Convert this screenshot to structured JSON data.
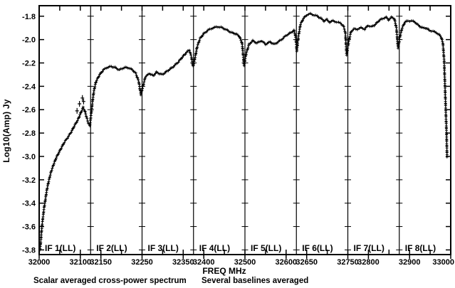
{
  "page": {
    "background": "#ffffff",
    "foreground": "#000000",
    "caption_left": "Scalar averaged cross-power spectrum",
    "caption_right": "Several baselines averaged"
  },
  "chart_data": {
    "type": "scatter",
    "marker": "plus",
    "title": "Scalar averaged cross-power spectrum, several baselines averaged",
    "xlabel": "FREQ MHz",
    "ylabel": "Log10(Amp) Jy",
    "xlim": [
      32000,
      33000
    ],
    "ylim": [
      -3.84,
      -1.71
    ],
    "grid": false,
    "x_minor_tick_step_mhz": 50,
    "x_ticks": [
      {
        "f": 32000,
        "label": "32000"
      },
      {
        "f": 32100,
        "label": "32100"
      },
      {
        "f": 32150,
        "label": "32150"
      },
      {
        "f": 32250,
        "label": "32250"
      },
      {
        "f": 32350,
        "label": "32350"
      },
      {
        "f": 32400,
        "label": "32400"
      },
      {
        "f": 32500,
        "label": "32500"
      },
      {
        "f": 32600,
        "label": "32600"
      },
      {
        "f": 32650,
        "label": "32650"
      },
      {
        "f": 32750,
        "label": "32750"
      },
      {
        "f": 32800,
        "label": "32800"
      },
      {
        "f": 32900,
        "label": "32900"
      },
      {
        "f": 33000,
        "label": "33000"
      }
    ],
    "y_ticks": [
      {
        "v": -1.8,
        "label": "-1.8"
      },
      {
        "v": -2.0,
        "label": "-2.0"
      },
      {
        "v": -2.2,
        "label": "-2.2"
      },
      {
        "v": -2.4,
        "label": "-2.4"
      },
      {
        "v": -2.6,
        "label": "-2.6"
      },
      {
        "v": -2.8,
        "label": "-2.8"
      },
      {
        "v": -3.0,
        "label": "-3.0"
      },
      {
        "v": -3.2,
        "label": "-3.2"
      },
      {
        "v": -3.4,
        "label": "-3.4"
      },
      {
        "v": -3.6,
        "label": "-3.6"
      },
      {
        "v": -3.8,
        "label": "-3.8"
      }
    ],
    "panel_boundaries_mhz": [
      32125,
      32250,
      32375,
      32500,
      32625,
      32750,
      32875
    ],
    "panels": [
      {
        "label": "IF 1(LL)",
        "f_start": 32000,
        "f_end": 32125
      },
      {
        "label": "IF 2(LL)",
        "f_start": 32125,
        "f_end": 32250
      },
      {
        "label": "IF 3(LL)",
        "f_start": 32250,
        "f_end": 32375
      },
      {
        "label": "IF 4(LL)",
        "f_start": 32375,
        "f_end": 32500
      },
      {
        "label": "IF 5(LL)",
        "f_start": 32500,
        "f_end": 32625
      },
      {
        "label": "IF 6(LL)",
        "f_start": 32625,
        "f_end": 32750
      },
      {
        "label": "IF 7(LL)",
        "f_start": 32750,
        "f_end": 32875
      },
      {
        "label": "IF 8(LL)",
        "f_start": 32875,
        "f_end": 33000
      }
    ],
    "series": [
      {
        "name": "cross-power spectrum (LL)",
        "points": [
          [
            32002,
            -3.8
          ],
          [
            32004,
            -3.73
          ],
          [
            32005,
            -3.67
          ],
          [
            32007,
            -3.59
          ],
          [
            32009,
            -3.53
          ],
          [
            32012,
            -3.44
          ],
          [
            32016,
            -3.35
          ],
          [
            32019,
            -3.28
          ],
          [
            32024,
            -3.2
          ],
          [
            32029,
            -3.13
          ],
          [
            32036,
            -3.06
          ],
          [
            32043,
            -3.0
          ],
          [
            32052,
            -2.94
          ],
          [
            32061,
            -2.88
          ],
          [
            32069,
            -2.84
          ],
          [
            32078,
            -2.79
          ],
          [
            32087,
            -2.73
          ],
          [
            32095,
            -2.68
          ],
          [
            32102,
            -2.62
          ],
          [
            32107,
            -2.58
          ],
          [
            32111,
            -2.61
          ],
          [
            32114,
            -2.65
          ],
          [
            32119,
            -2.71
          ],
          [
            32123,
            -2.74
          ],
          [
            32126,
            -2.65
          ],
          [
            32130,
            -2.52
          ],
          [
            32133,
            -2.44
          ],
          [
            32138,
            -2.36
          ],
          [
            32147,
            -2.3
          ],
          [
            32156,
            -2.26
          ],
          [
            32164,
            -2.24
          ],
          [
            32175,
            -2.23
          ],
          [
            32185,
            -2.24
          ],
          [
            32195,
            -2.26
          ],
          [
            32206,
            -2.24
          ],
          [
            32216,
            -2.24
          ],
          [
            32227,
            -2.26
          ],
          [
            32235,
            -2.29
          ],
          [
            32242,
            -2.36
          ],
          [
            32247,
            -2.47
          ],
          [
            32253,
            -2.39
          ],
          [
            32258,
            -2.32
          ],
          [
            32268,
            -2.29
          ],
          [
            32277,
            -2.31
          ],
          [
            32285,
            -2.28
          ],
          [
            32299,
            -2.3
          ],
          [
            32311,
            -2.27
          ],
          [
            32323,
            -2.24
          ],
          [
            32336,
            -2.2
          ],
          [
            32348,
            -2.15
          ],
          [
            32358,
            -2.11
          ],
          [
            32365,
            -2.09
          ],
          [
            32370,
            -2.15
          ],
          [
            32374,
            -2.23
          ],
          [
            32379,
            -2.15
          ],
          [
            32384,
            -2.06
          ],
          [
            32391,
            -1.99
          ],
          [
            32400,
            -1.95
          ],
          [
            32410,
            -1.92
          ],
          [
            32422,
            -1.9
          ],
          [
            32434,
            -1.89
          ],
          [
            32446,
            -1.9
          ],
          [
            32457,
            -1.92
          ],
          [
            32467,
            -1.94
          ],
          [
            32477,
            -1.95
          ],
          [
            32486,
            -1.97
          ],
          [
            32493,
            -2.03
          ],
          [
            32498,
            -2.22
          ],
          [
            32503,
            -2.12
          ],
          [
            32510,
            -2.04
          ],
          [
            32519,
            -2.01
          ],
          [
            32529,
            -2.03
          ],
          [
            32540,
            -2.01
          ],
          [
            32550,
            -2.04
          ],
          [
            32561,
            -2.02
          ],
          [
            32571,
            -2.04
          ],
          [
            32581,
            -2.02
          ],
          [
            32592,
            -1.99
          ],
          [
            32602,
            -1.96
          ],
          [
            32612,
            -1.94
          ],
          [
            32619,
            -1.92
          ],
          [
            32623,
            -1.97
          ],
          [
            32626,
            -2.1
          ],
          [
            32630,
            -1.97
          ],
          [
            32635,
            -1.87
          ],
          [
            32642,
            -1.82
          ],
          [
            32650,
            -1.79
          ],
          [
            32659,
            -1.78
          ],
          [
            32668,
            -1.79
          ],
          [
            32676,
            -1.8
          ],
          [
            32685,
            -1.82
          ],
          [
            32692,
            -1.84
          ],
          [
            32699,
            -1.83
          ],
          [
            32706,
            -1.85
          ],
          [
            32714,
            -1.84
          ],
          [
            32723,
            -1.85
          ],
          [
            32732,
            -1.86
          ],
          [
            32739,
            -1.88
          ],
          [
            32744,
            -1.94
          ],
          [
            32747,
            -2.13
          ],
          [
            32753,
            -2.0
          ],
          [
            32758,
            -1.93
          ],
          [
            32765,
            -1.91
          ],
          [
            32773,
            -1.91
          ],
          [
            32782,
            -1.9
          ],
          [
            32791,
            -1.91
          ],
          [
            32799,
            -1.88
          ],
          [
            32808,
            -1.89
          ],
          [
            32817,
            -1.87
          ],
          [
            32825,
            -1.84
          ],
          [
            32834,
            -1.82
          ],
          [
            32843,
            -1.81
          ],
          [
            32849,
            -1.83
          ],
          [
            32856,
            -1.81
          ],
          [
            32863,
            -1.82
          ],
          [
            32868,
            -1.9
          ],
          [
            32872,
            -2.07
          ],
          [
            32877,
            -1.97
          ],
          [
            32882,
            -1.9
          ],
          [
            32889,
            -1.85
          ],
          [
            32896,
            -1.84
          ],
          [
            32905,
            -1.84
          ],
          [
            32913,
            -1.85
          ],
          [
            32922,
            -1.88
          ],
          [
            32931,
            -1.9
          ],
          [
            32939,
            -1.9
          ],
          [
            32948,
            -1.92
          ],
          [
            32957,
            -1.93
          ],
          [
            32965,
            -1.94
          ],
          [
            32972,
            -1.96
          ],
          [
            32977,
            -1.98
          ],
          [
            32981,
            -2.03
          ],
          [
            32984,
            -2.18
          ],
          [
            32986,
            -2.39
          ],
          [
            32988,
            -2.61
          ],
          [
            32990,
            -2.82
          ],
          [
            32991,
            -3.0
          ]
        ]
      }
    ],
    "outlier_points": [
      [
        32092,
        -2.61
      ],
      [
        32098,
        -2.55
      ],
      [
        32105,
        -2.5
      ],
      [
        32108,
        -2.53
      ]
    ]
  }
}
